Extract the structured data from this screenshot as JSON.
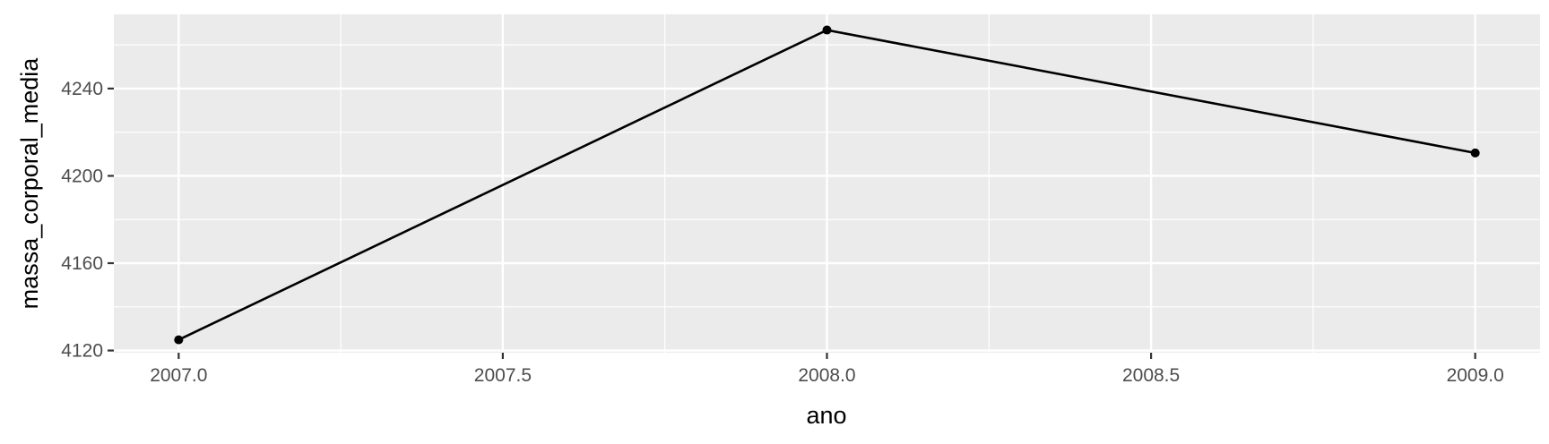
{
  "chart_data": {
    "type": "line",
    "title": "",
    "xlabel": "ano",
    "ylabel": "massa_corporal_media",
    "x": [
      2007,
      2008,
      2009
    ],
    "series": [
      {
        "values": [
          4124.9,
          4266.8,
          4210.5
        ],
        "color": "#000000"
      }
    ],
    "xlim": [
      2006.9,
      2009.1
    ],
    "ylim": [
      4119,
      4274
    ],
    "x_ticks": [
      2007.0,
      2007.5,
      2008.0,
      2008.5,
      2009.0
    ],
    "x_tick_labels": [
      "2007.0",
      "2007.5",
      "2008.0",
      "2008.5",
      "2009.0"
    ],
    "x_minor_ticks": [
      2007.25,
      2007.75,
      2008.25,
      2008.75
    ],
    "y_ticks": [
      4120,
      4160,
      4200,
      4240
    ],
    "y_tick_labels": [
      "4120",
      "4160",
      "4200",
      "4240"
    ],
    "y_minor_ticks": [
      4140,
      4180,
      4220,
      4260
    ],
    "grid": true,
    "panel_background": "#EBEBEB",
    "grid_color": "#FFFFFF",
    "legend": "none"
  }
}
